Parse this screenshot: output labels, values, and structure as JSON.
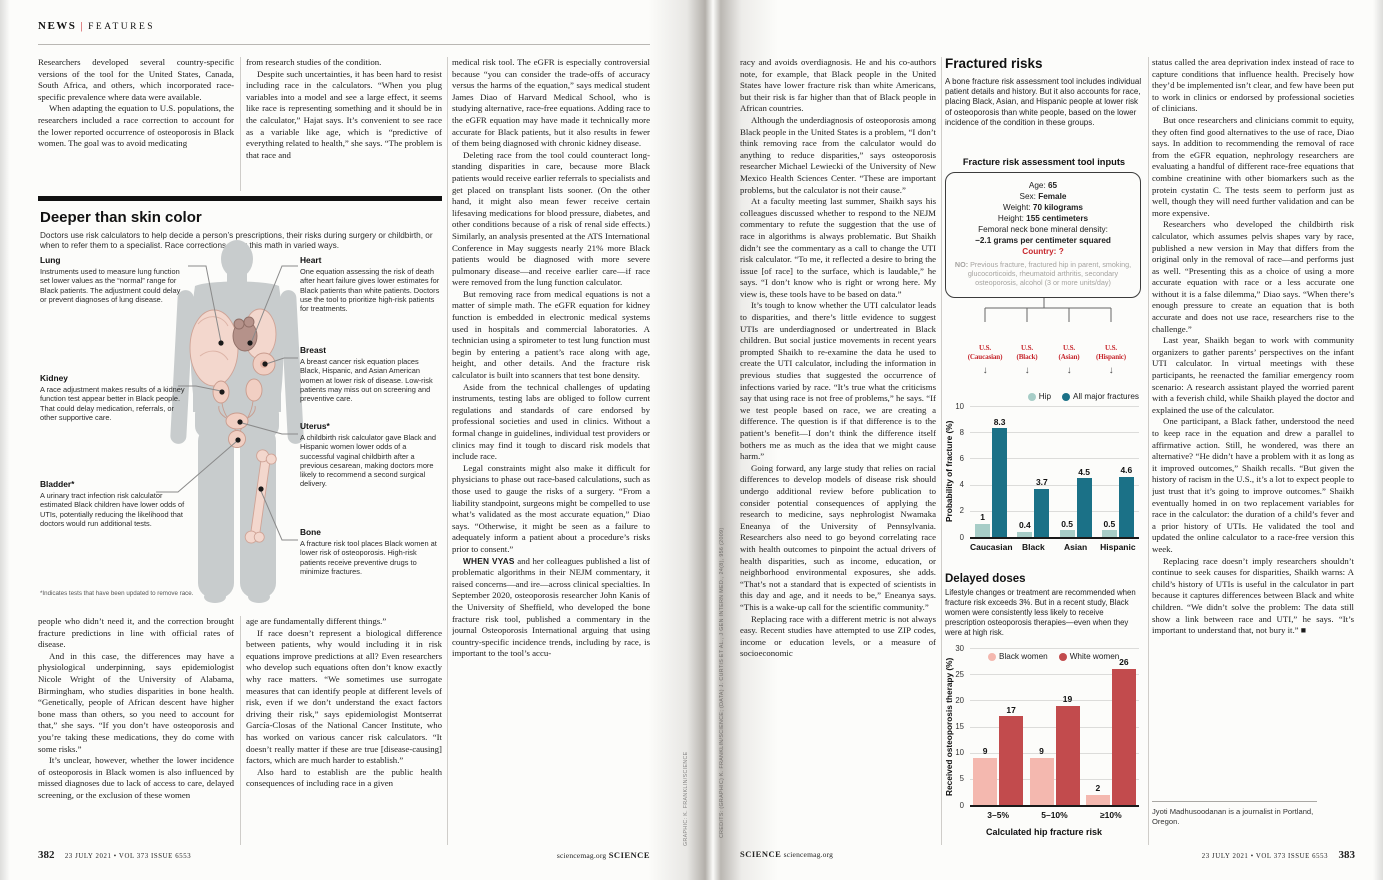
{
  "header": {
    "news": "NEWS",
    "sep": "|",
    "features": "FEATURES"
  },
  "article": {
    "col1_top": [
      {
        "lead": "",
        "text": "Researchers developed several country-specific versions of the tool for the United States, Canada, South Africa, and others, which incorporated race-specific prevalence where data were available."
      },
      {
        "lead": "",
        "text": "When adapting the equation to U.S. populations, the researchers included a race correction to account for the lower reported occurrence of osteoporosis in Black women. The goal was to avoid medicating"
      }
    ],
    "col1_bottom": [
      {
        "lead": "",
        "text": "people who didn’t need it, and the correction brought fracture predictions in line with official rates of disease."
      },
      {
        "lead": "",
        "text": "And in this case, the differences may have a physiological underpinning, says epidemiologist Nicole Wright of the University of Alabama, Birmingham, who studies disparities in bone health. “Genetically, people of African descent have higher bone mass than others, so you need to account for that,” she says. “If you don’t have osteoporosis and you’re taking these medications, they do come with some risks.”"
      },
      {
        "lead": "",
        "text": "It’s unclear, however, whether the lower incidence of osteoporosis in Black women is also influenced by missed diagnoses due to lack of access to care, delayed screening, or the exclusion of these women"
      }
    ],
    "col2_top": [
      {
        "lead": "",
        "text": "from research studies of the condition."
      },
      {
        "lead": "",
        "text": "Despite such uncertainties, it has been hard to resist including race in the calculators. “When you plug variables into a model and see a large effect, it seems like race is representing something and it should be in the calculator,” Hajat says. It’s convenient to see race as a variable like age, which is “predictive of everything related to health,” she says. “The problem is that race and"
      }
    ],
    "col2_bottom": [
      {
        "lead": "",
        "text": "age are fundamentally different things.”"
      },
      {
        "lead": "",
        "text": "If race doesn’t represent a biological difference between patients, why would including it in risk equations improve predictions at all? Even researchers who develop such equations often don’t know exactly why race matters. “We sometimes use surrogate measures that can identify people at different levels of risk, even if we don’t understand the exact factors driving their risk,” says epidemiologist Montserrat García-Closas of the National Cancer Institute, who has worked on various cancer risk calculators. “It doesn’t really matter if these are true [disease-causing] factors, which are much harder to establish.”"
      },
      {
        "lead": "",
        "text": "Also hard to establish are the public health consequences of including race in a given"
      }
    ],
    "col3": [
      {
        "lead": "",
        "text": "medical risk tool. The eGFR is especially controversial because “you can consider the trade-offs of accuracy versus the harms of the equation,” says medical student James Diao of Harvard Medical School, who is studying alternative, race-free equations. Adding race to the eGFR equation may have made it technically more accurate for Black patients, but it also results in fewer of them being diagnosed with chronic kidney disease."
      },
      {
        "lead": "",
        "text": "Deleting race from the tool could counteract long-standing disparities in care, because more Black patients would receive earlier referrals to specialists and get placed on transplant lists sooner. (On the other hand, it might also mean fewer receive certain lifesaving medications for blood pressure, diabetes, and other conditions because of a risk of renal side effects.) Similarly, an analysis presented at the ATS International Conference in May suggests nearly 21% more Black patients would be diagnosed with more severe pulmonary disease—and receive earlier care—if race were removed from the lung function calculator."
      },
      {
        "lead": "",
        "text": "But removing race from medical equations is not a matter of simple math. The eGFR equation for kidney function is embedded in electronic medical systems used in hospitals and commercial laboratories. A technician using a spirometer to test lung function must begin by entering a patient’s race along with age, height, and other details. And the fracture risk calculator is built into scanners that test bone density."
      },
      {
        "lead": "",
        "text": "Aside from the technical challenges of updating instruments, testing labs are obliged to follow current regulations and standards of care endorsed by professional societies and used in clinics. Without a formal change in guidelines, individual test providers or clinics may find it tough to discard risk models that include race."
      },
      {
        "lead": "",
        "text": "Legal constraints might also make it difficult for physicians to phase out race-based calculations, such as those used to gauge the risks of a surgery. “From a liability standpoint, surgeons might be compelled to use what’s validated as the most accurate equation,” Diao says. “Otherwise, it might be seen as a failure to adequately inform a patient about a procedure’s risks prior to consent.”"
      },
      {
        "lead": "WHEN VYAS",
        "text": " and her colleagues published a list of problematic algorithms in their NEJM commentary, it raised concerns—and ire—across clinical specialties. In September 2020, osteoporosis researcher John Kanis of the University of Sheffield, who developed the bone fracture risk tool, published a commentary in the journal Osteoporosis International arguing that using country-specific incidence trends, including by race, is important to the tool’s accu-"
      }
    ],
    "col4": [
      {
        "lead": "",
        "text": "racy and avoids overdiagnosis. He and his co-authors note, for example, that Black people in the United States have lower fracture risk than white Americans, but their risk is far higher than that of Black people in African countries."
      },
      {
        "lead": "",
        "text": "Although the underdiagnosis of osteoporosis among Black people in the United States is a problem, “I don’t think removing race from the calculator would do anything to reduce disparities,” says osteoporosis researcher Michael Lewiecki of the University of New Mexico Health Sciences Center. “These are important problems, but the calculator is not their cause.”"
      },
      {
        "lead": "",
        "text": "At a faculty meeting last summer, Shaikh says his colleagues discussed whether to respond to the NEJM commentary to refute the suggestion that the use of race in algorithms is always problematic. But Shaikh didn’t see the commentary as a call to change the UTI risk calculator. “To me, it reflected a desire to bring the issue [of race] to the surface, which is laudable,” he says. “I don’t know who is right or wrong here. My view is, these tools have to be based on data.”"
      },
      {
        "lead": "",
        "text": "It’s tough to know whether the UTI calculator leads to disparities, and there’s little evidence to suggest UTIs are underdiagnosed or undertreated in Black children. But social justice movements in recent years prompted Shaikh to re-examine the data he used to create the UTI calculator, including the information in previous studies that suggested the occurrence of infections varied by race. “It’s true what the criticisms say that using race is not free of problems,” he says. “If we test people based on race, we are creating a difference. The question is if that difference is to the patient’s benefit—I don’t think the difference itself bothers me as much as the idea that we might cause harm.”"
      },
      {
        "lead": "",
        "text": "Going forward, any large study that relies on racial differences to develop models of disease risk should undergo additional review before publication to consider potential consequences of applying the research to medicine, says nephrologist Nwamaka Eneanya of the University of Pennsylvania. Researchers also need to go beyond correlating race with health outcomes to pinpoint the actual drivers of health disparities, such as income, education, or neighborhood environmental exposures, she adds. “That’s not a standard that is expected of scientists in this day and age, and it needs to be,” Eneanya says. “This is a wake-up call for the scientific community.”"
      },
      {
        "lead": "",
        "text": "Replacing race with a different metric is not always easy. Recent studies have attempted to use ZIP codes, income or education levels, or a measure of socioeconomic"
      }
    ],
    "col5": [
      {
        "lead": "",
        "text": "status called the area deprivation index instead of race to capture conditions that influence health. Precisely how they’d be implemented isn’t clear, and few have been put to work in clinics or endorsed by professional societies of clinicians."
      },
      {
        "lead": "",
        "text": "But once researchers and clinicians commit to equity, they often find good alternatives to the use of race, Diao says. In addition to recommending the removal of race from the eGFR equation, nephrology researchers are evaluating a handful of different race-free equations that combine creatinine with other biomarkers such as the protein cystatin C. The tests seem to perform just as well, though they will need further validation and can be more expensive."
      },
      {
        "lead": "",
        "text": "Researchers who developed the childbirth risk calculator, which assumes pelvis shapes vary by race, published a new version in May that differs from the original only in the removal of race—and performs just as well. “Presenting this as a choice of using a more accurate equation with race or a less accurate one without it is a false dilemma,” Diao says. “When there’s enough pressure to create an equation that is both accurate and does not use race, researchers rise to the challenge.”"
      },
      {
        "lead": "",
        "text": "Last year, Shaikh began to work with community organizers to gather parents’ perspectives on the infant UTI calculator. In virtual meetings with these participants, he reenacted the familiar emergency room scenario: A research assistant played the worried parent with a feverish child, while Shaikh played the doctor and explained the use of the calculator."
      },
      {
        "lead": "",
        "text": "One participant, a Black father, understood the need to keep race in the equation and drew a parallel to affirmative action. Still, he wondered, was there an alternative? “He didn’t have a problem with it as long as it improved outcomes,” Shaikh recalls. “But given the history of racism in the U.S., it’s a lot to expect people to just trust that it’s going to improve outcomes.” Shaikh eventually homed in on two replacement variables for race in the calculator: the duration of a child’s fever and a prior history of UTIs. He validated the tool and updated the online calculator to a race-free version this week."
      },
      {
        "lead": "",
        "text": "Replacing race doesn’t imply researchers shouldn’t continue to seek causes for disparities, Shaikh warns: A child’s history of UTIs is useful in the calculator in part because it captures differences between Black and white children. “We didn’t solve the problem: The data still show a link between race and UTI,” he says. “It’s important to understand that, not bury it.” ■"
      }
    ]
  },
  "infographic": {
    "title": "Deeper than skin color",
    "subtitle": "Doctors use risk calculators to help decide a person’s prescriptions, their risks during surgery or childbirth, or when to refer them to a specialist. Race corrections sway this math in varied ways.",
    "labels_left": [
      {
        "title": "Lung",
        "text": "Instruments used to measure lung function set lower values as the “normal” range for Black patients. The adjustment could delay or prevent diagnoses of lung disease."
      },
      {
        "title": "Kidney",
        "text": "A race adjustment makes results of a kidney function test appear better in Black people. That could delay medication, referrals, or other supportive care."
      },
      {
        "title": "Bladder*",
        "text": "A urinary tract infection risk calculator estimated Black children have lower odds of UTIs, potentially reducing the likelihood that doctors would run additional tests."
      }
    ],
    "labels_right": [
      {
        "title": "Heart",
        "text": "One equation assessing the risk of death after heart failure gives lower estimates for Black patients than white patients. Doctors use the tool to prioritize high-risk patients for treatments."
      },
      {
        "title": "Breast",
        "text": "A breast cancer risk equation places Black, Hispanic, and Asian American women at lower risk of disease. Low-risk patients may miss out on screening and preventive care."
      },
      {
        "title": "Uterus*",
        "text": "A childbirth risk calculator gave Black and Hispanic women lower odds of a successful vaginal childbirth after a previous cesarean, making doctors more likely to recommend a second surgical delivery."
      },
      {
        "title": "Bone",
        "text": "A fracture risk tool places Black women at lower risk of osteoporosis. High-risk patients receive preventive drugs to minimize fractures."
      }
    ],
    "footnote": "*Indicates tests that have been updated to remove race."
  },
  "sidebar": {
    "title": "Fractured risks",
    "intro": "A bone fracture risk assessment tool includes individual patient details and history. But it also accounts for race, placing Black, Asian, and Hispanic people at lower risk of osteoporosis than white people, based on the lower incidence of the condition in these groups.",
    "tool_title": "Fracture risk assessment tool inputs",
    "inputs": [
      {
        "label": "Age:",
        "value": "65"
      },
      {
        "label": "Sex:",
        "value": "Female"
      },
      {
        "label": "Weight:",
        "value": "70 kilograms"
      },
      {
        "label": "Height:",
        "value": "155 centimeters"
      },
      {
        "label": "Femoral neck bone mineral density:",
        "value": ""
      },
      {
        "label": "",
        "value": "−2.1 grams per centimeter squared"
      }
    ],
    "country_label": "Country:",
    "country_value": "?",
    "note_lead": "NO:",
    "note": "Previous fracture, fractured hip in parent, smoking, glucocorticoids, rheumatoid arthritis, secondary osteoporosis, alcohol (3 or more units/day)",
    "branches": [
      {
        "line1": "U.S.",
        "line2": "(Caucasian)",
        "arrow": "↓"
      },
      {
        "line1": "U.S.",
        "line2": "(Black)",
        "arrow": "↓"
      },
      {
        "line1": "U.S.",
        "line2": "(Asian)",
        "arrow": "↓"
      },
      {
        "line1": "U.S.",
        "line2": "(Hispanic)",
        "arrow": "↓"
      }
    ],
    "delayed_title": "Delayed doses",
    "delayed_text": "Lifestyle changes or treatment are recommended when fracture risk exceeds 3%. But in a recent study, Black women were consistently less likely to receive prescription osteoporosis therapies—even when they were at high risk."
  },
  "chart_data": [
    {
      "type": "bar",
      "title": "",
      "categories": [
        "Caucasian",
        "Black",
        "Asian",
        "Hispanic"
      ],
      "series": [
        {
          "name": "Hip",
          "color": "#a7cdc7",
          "values": [
            1,
            0.4,
            0.5,
            0.5
          ]
        },
        {
          "name": "All major fractures",
          "color": "#1b7187",
          "values": [
            8.3,
            3.7,
            4.5,
            4.6
          ]
        }
      ],
      "xlabel": "",
      "ylabel": "Probability of fracture (%)",
      "ylim": [
        0,
        10
      ],
      "yticks": [
        0,
        2,
        4,
        6,
        8,
        10
      ],
      "legend_position": "top-right",
      "grid": true
    },
    {
      "type": "bar",
      "title": "",
      "categories": [
        "3–5%",
        "5–10%",
        "≥10%"
      ],
      "series": [
        {
          "name": "Black women",
          "color": "#f4b8af",
          "values": [
            9,
            9,
            2
          ]
        },
        {
          "name": "White women",
          "color": "#c24b4d",
          "values": [
            17,
            19,
            26
          ]
        }
      ],
      "xlabel": "Calculated hip fracture risk",
      "ylabel": "Received osteoporosis therapy (%)",
      "ylim": [
        0,
        30
      ],
      "yticks": [
        0,
        5,
        10,
        15,
        20,
        25,
        30
      ],
      "legend_position": "top-left",
      "grid": true
    }
  ],
  "bio": "Jyoti Madhusoodanan is a journalist in Portland, Oregon.",
  "credits": {
    "left": "GRAPHIC: K. FRANKLIN/SCIENCE",
    "right": "CREDITS: (GRAPHIC) K. FRANKLIN/SCIENCE; (DATA) J. CURTIS ET AL., J GEN INTERN MED., 24(8), 956 (2009)"
  },
  "footers": {
    "left": {
      "page": "382",
      "issue": "23 JULY 2021 • VOL 373 ISSUE 6553",
      "site": "sciencemag.org",
      "brand": "SCIENCE"
    },
    "right": {
      "page": "383",
      "issue": "23 JULY 2021 • VOL 373 ISSUE 6553",
      "site": "sciencemag.org",
      "brand": "SCIENCE"
    }
  },
  "colors": {
    "accent_red": "#c6282e",
    "teal_dark": "#1b7187",
    "teal_light": "#a7cdc7",
    "pink_light": "#f4b8af",
    "red_dark": "#c24b4d"
  }
}
